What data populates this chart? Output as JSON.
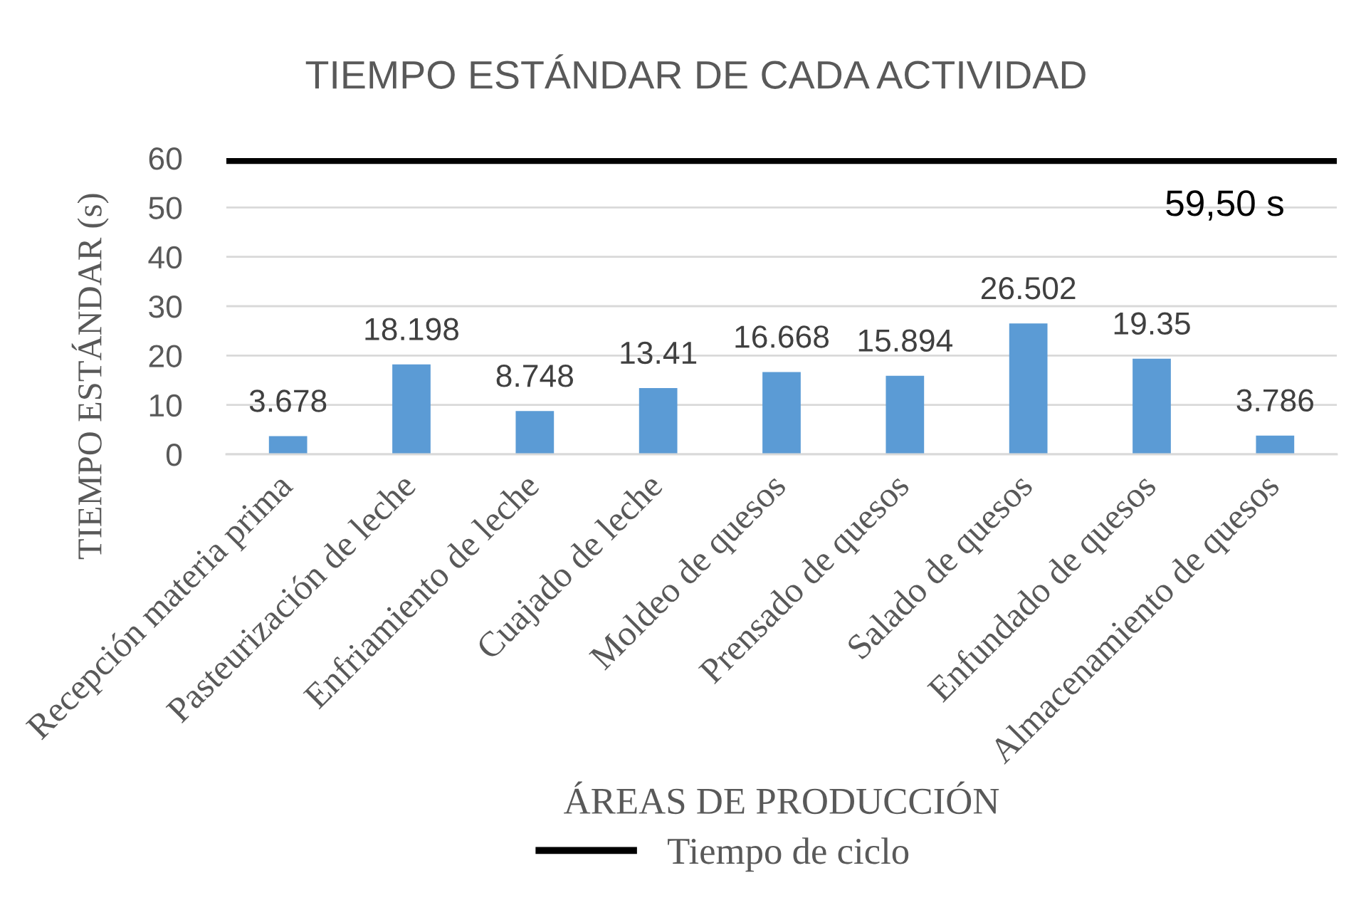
{
  "chart_data": {
    "type": "bar",
    "title": "TIEMPO ESTÁNDAR DE CADA ACTIVIDAD",
    "xlabel": "ÁREAS DE PRODUCCIÓN",
    "ylabel": "TIEMPO ESTÁNDAR (s)",
    "categories": [
      "Recepción materia prima",
      "Pasteurización de leche",
      "Enfriamiento de leche",
      "Cuajado de leche",
      "Moldeo de quesos",
      "Prensado de quesos",
      "Salado de quesos",
      "Enfundado de quesos",
      "Almacenamiento de quesos"
    ],
    "values": [
      3.678,
      18.198,
      8.748,
      13.41,
      16.668,
      15.894,
      26.502,
      19.35,
      3.786
    ],
    "color": "#5b9bd5",
    "ylim": [
      0,
      60
    ],
    "yticks": [
      0,
      10,
      20,
      30,
      40,
      50,
      60
    ],
    "grid": "y",
    "data_labels": true,
    "ref_lines": [
      {
        "axis": "y",
        "value": 59.5,
        "label": "Tiempo de ciclo",
        "color": "#000000",
        "line_style": "solid"
      }
    ],
    "annotations": [
      "59,50 s"
    ],
    "legend": "bottom"
  }
}
